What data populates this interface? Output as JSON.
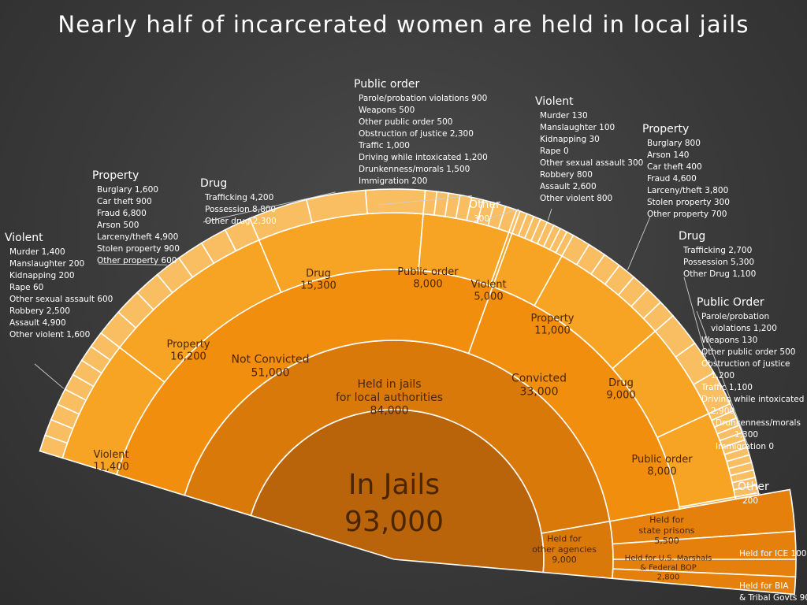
{
  "title": "Nearly half of incarcerated women are held in local jails",
  "chart_data": {
    "type": "sunburst",
    "title": "Nearly half of incarcerated women are held in local jails",
    "root": {
      "name": "In Jails",
      "value": "93,000"
    },
    "rings": {
      "holder": [
        {
          "id": "local",
          "name": "Held in jails for local authorities",
          "value": "84,000"
        },
        {
          "id": "other_agencies",
          "name": "Held for other agencies",
          "value": "9,000"
        }
      ],
      "agencies": [
        {
          "id": "state",
          "name": "Held for state prisons",
          "value": "5,500"
        },
        {
          "id": "marshals",
          "name": "Held for U.S. Marshals & Federal BOP",
          "value": "2,800"
        },
        {
          "id": "ice",
          "name": "Held for ICE",
          "value": "100"
        },
        {
          "id": "bia",
          "name": "Held for BIA & Tribal Govts",
          "value": "90"
        }
      ],
      "conviction": [
        {
          "id": "notconv",
          "name": "Not Convicted",
          "value": "51,000"
        },
        {
          "id": "conv",
          "name": "Convicted",
          "value": "33,000"
        }
      ],
      "offense_not_convicted": [
        {
          "id": "nc_violent",
          "name": "Violent",
          "value": "11,400"
        },
        {
          "id": "nc_property",
          "name": "Property",
          "value": "16,200"
        },
        {
          "id": "nc_drug",
          "name": "Drug",
          "value": "15,300"
        },
        {
          "id": "nc_public",
          "name": "Public order",
          "value": "8,000"
        },
        {
          "id": "nc_other",
          "name": "Other",
          "value": "300"
        }
      ],
      "offense_convicted": [
        {
          "id": "c_violent",
          "name": "Violent",
          "value": "5,000"
        },
        {
          "id": "c_property",
          "name": "Property",
          "value": "11,000"
        },
        {
          "id": "c_drug",
          "name": "Drug",
          "value": "9,000"
        },
        {
          "id": "c_public",
          "name": "Public order",
          "value": "8,000"
        },
        {
          "id": "c_other",
          "name": "Other",
          "value": "200"
        }
      ]
    },
    "detail_groups": [
      {
        "id": "nc_violent",
        "heading": "Violent",
        "lines": [
          "Murder 1,400",
          "Manslaughter 200",
          "Kidnapping 200",
          "Rape 60",
          "Other sexual assault 600",
          "Robbery 2,500",
          "Assault 4,900",
          "Other violent 1,600"
        ]
      },
      {
        "id": "nc_property",
        "heading": "Property",
        "lines": [
          "Burglary 1,600",
          "Car theft 900",
          "Fraud 6,800",
          "Arson 500",
          "Larceny/theft 4,900",
          "Stolen property 900",
          "Other property 600"
        ]
      },
      {
        "id": "nc_drug",
        "heading": "Drug",
        "lines": [
          "Trafficking 4,200",
          "Possession 8,800",
          "Other drug 2,300"
        ]
      },
      {
        "id": "nc_public",
        "heading": "Public order",
        "lines": [
          "Parole/probation violations 900",
          "Weapons 500",
          "Other public order 500",
          "Obstruction of justice 2,300",
          "Traffic 1,000",
          "Driving while intoxicated 1,200",
          "Drunkenness/morals 1,500",
          "Immigration 200"
        ]
      },
      {
        "id": "nc_other",
        "heading": "Other",
        "lines": [
          "300"
        ]
      },
      {
        "id": "c_violent",
        "heading": "Violent",
        "lines": [
          "Murder 130",
          "Manslaughter 100",
          "Kidnapping 30",
          "Rape 0",
          "Other sexual assault 300",
          "Robbery 800",
          "Assault 2,600",
          "Other violent 800"
        ]
      },
      {
        "id": "c_property",
        "heading": "Property",
        "lines": [
          "Burglary 800",
          "Arson 140",
          "Car theft 400",
          "Fraud 4,600",
          "Larceny/theft 3,800",
          "Stolen property 300",
          "Other property 700"
        ]
      },
      {
        "id": "c_drug",
        "heading": "Drug",
        "lines": [
          "Trafficking 2,700",
          "Possession 5,300",
          "Other Drug 1,100"
        ]
      },
      {
        "id": "c_public",
        "heading": "Public Order",
        "lines": [
          "Parole/probation",
          "violations 1,200",
          "Weapons 130",
          "Other public order 500",
          "Obstruction of justice",
          "1,200",
          "Traffic 1,100",
          "Driving while intoxicated",
          "2,900",
          "Drunkenness/morals",
          "1,300",
          "Immigration 0"
        ]
      },
      {
        "id": "c_other",
        "heading": "Other",
        "lines": [
          "200"
        ]
      }
    ],
    "colors": {
      "root": "#b9630a",
      "holder": "#d9790a",
      "conviction": "#f28e0d",
      "offense": "#f7a424",
      "detail": "#f9bd62",
      "agencies": "#e6800c",
      "label": "#4a2600",
      "line": "#ffffff"
    }
  }
}
